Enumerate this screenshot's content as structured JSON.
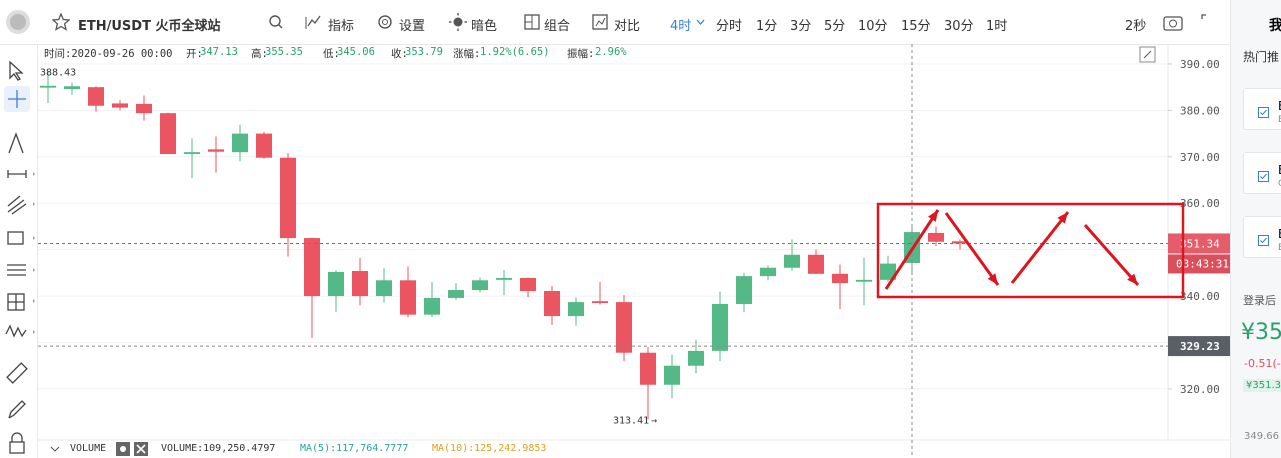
{
  "toolbar": {
    "symbol": "ETH/USDT 火币全球站",
    "items": [
      "指标",
      "设置",
      "暗色",
      "组合",
      "对比"
    ],
    "periods": [
      "4时",
      "分时",
      "1分",
      "3分",
      "5分",
      "10分",
      "15分",
      "30分",
      "1时"
    ],
    "refresh": "2秒"
  },
  "info_bar": {
    "time": "时间:2020-09-26 00:00",
    "fields": [
      {
        "label": "开:",
        "value": "347.13"
      },
      {
        "label": "高:",
        "value": "355.35"
      },
      {
        "label": "低:",
        "value": "345.06"
      },
      {
        "label": "收:",
        "value": "353.79"
      },
      {
        "label": "涨幅:",
        "value": "1.92%(6.65)"
      },
      {
        "label": "振幅:",
        "value": "2.96%"
      }
    ]
  },
  "chart_data": {
    "type": "candlestick",
    "up_color": "#53b987",
    "down_color": "#eb5461",
    "ylim": [
      309.0,
      394.3
    ],
    "yticks": [
      {
        "value": 320,
        "label": "320.00"
      },
      {
        "value": 330,
        "label": "330.00"
      },
      {
        "value": 340,
        "label": "340.00"
      },
      {
        "value": 350,
        "label": "350.00"
      },
      {
        "value": 360,
        "label": "360.00"
      },
      {
        "value": 370,
        "label": "370.00"
      },
      {
        "value": 380,
        "label": "380.00"
      },
      {
        "value": 390,
        "label": "390.00"
      }
    ],
    "grid": true,
    "open": [
      384.9,
      384.6,
      385.0,
      381.5,
      381.4,
      379.4,
      370.6,
      371.6,
      371.0,
      375.0,
      369.8,
      352.5,
      340.0,
      345.4,
      340.0,
      343.4,
      336.0,
      339.6,
      341.3,
      343.5,
      343.9,
      341.1,
      335.7,
      338.9,
      338.7,
      327.8,
      320.9,
      325.0,
      328.2,
      338.3,
      344.3,
      346.1,
      348.9,
      344.8,
      343.1,
      343.5,
      347.13,
      353.6,
      351.8
    ],
    "high": [
      388.43,
      386.0,
      385.2,
      382.2,
      383.2,
      379.5,
      374.0,
      374.4,
      376.9,
      375.4,
      370.8,
      352.6,
      345.6,
      348.2,
      346.0,
      346.4,
      343.0,
      342.8,
      344.0,
      345.6,
      344.0,
      342.2,
      339.7,
      343.0,
      340.2,
      329.0,
      327.4,
      330.6,
      341.0,
      345.0,
      346.6,
      352.2,
      350.0,
      346.8,
      348.3,
      348.7,
      355.35,
      355.0,
      352.2
    ],
    "low": [
      381.6,
      383.4,
      379.7,
      380.0,
      377.8,
      370.6,
      365.4,
      366.6,
      369.0,
      369.6,
      348.5,
      331.0,
      336.6,
      338.0,
      338.6,
      335.4,
      335.5,
      339.2,
      340.8,
      340.2,
      339.8,
      333.8,
      333.6,
      338.2,
      326.0,
      313.41,
      318.0,
      323.4,
      326.0,
      336.6,
      343.4,
      345.4,
      344.7,
      337.2,
      338.0,
      343.1,
      345.06,
      350.8,
      350.0
    ],
    "close": [
      385.3,
      385.2,
      381.0,
      380.6,
      379.4,
      370.6,
      371.0,
      371.1,
      375.0,
      369.8,
      352.5,
      340.0,
      345.2,
      340.0,
      343.4,
      336.0,
      339.6,
      341.3,
      343.4,
      343.9,
      341.1,
      335.7,
      338.7,
      338.5,
      327.8,
      320.9,
      325.0,
      328.2,
      338.3,
      344.3,
      346.1,
      348.9,
      344.8,
      342.8,
      343.5,
      347.0,
      353.79,
      351.7,
      351.34
    ],
    "high_marker": 388.43,
    "low_marker": 313.41,
    "last_price": 351.34,
    "countdown": "03:43:31",
    "crosshair_price": 329.23
  },
  "volume_bar": {
    "label": "VOLUME",
    "volume": "VOLUME:109,250.4797",
    "ma5": "MA(5):117,764.7777",
    "ma10": "MA(10):125,242.9853"
  },
  "side_panel": {
    "header": "我",
    "hot": "热门推",
    "cards": [
      {
        "title": "B",
        "sub": "E"
      },
      {
        "title": "B",
        "sub": "C"
      },
      {
        "title": "B",
        "sub": "E"
      }
    ],
    "login": "登录后",
    "price": "¥35",
    "change": "-0.51(-",
    "badge": "¥351.3",
    "bottom": "349.66"
  }
}
